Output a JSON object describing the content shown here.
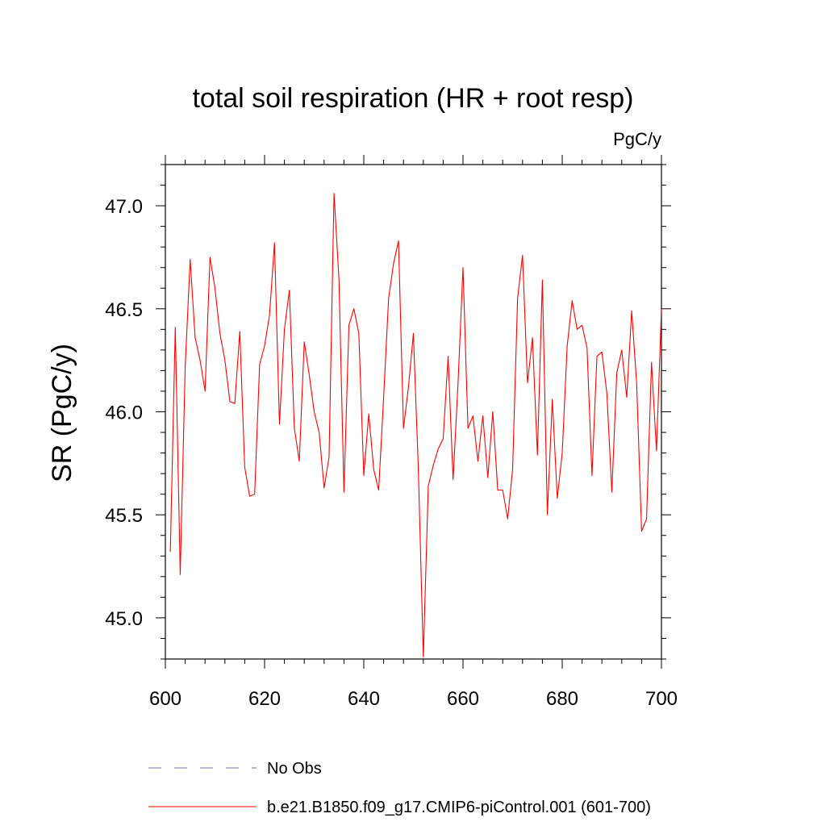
{
  "chart_data": {
    "type": "line",
    "title": "total soil respiration (HR + root resp)",
    "units": "PgC/y",
    "xlabel": "",
    "ylabel": "SR  (PgC/y)",
    "xlim": [
      600,
      700
    ],
    "ylim": [
      44.8,
      47.2
    ],
    "x_ticks": [
      600,
      620,
      640,
      660,
      680,
      700
    ],
    "x_tick_labels": [
      "600",
      "620",
      "640",
      "660",
      "680",
      "700"
    ],
    "y_ticks": [
      45.0,
      45.5,
      46.0,
      46.5,
      47.0
    ],
    "y_tick_labels": [
      "45.0",
      "45.5",
      "46.0",
      "46.5",
      "47.0"
    ],
    "grid": false,
    "series": [
      {
        "name": "b.e21.B1850.f09_g17.CMIP6-piControl.001 (601-700)",
        "color": "#ff0000",
        "style": "solid",
        "x_start": 601,
        "x_step": 1,
        "values": [
          45.32,
          46.41,
          45.21,
          46.22,
          46.74,
          46.36,
          46.25,
          46.1,
          46.75,
          46.6,
          46.38,
          46.25,
          46.05,
          46.04,
          46.39,
          45.73,
          45.59,
          45.6,
          46.23,
          46.32,
          46.47,
          46.82,
          45.94,
          46.4,
          46.59,
          45.92,
          45.76,
          46.34,
          46.18,
          46.0,
          45.9,
          45.63,
          45.78,
          47.06,
          46.64,
          45.61,
          46.42,
          46.5,
          46.38,
          45.69,
          45.99,
          45.72,
          45.62,
          46.07,
          46.55,
          46.72,
          46.83,
          45.92,
          46.12,
          46.38,
          45.72,
          44.81,
          45.64,
          45.74,
          45.82,
          45.87,
          46.27,
          45.67,
          46.14,
          46.7,
          45.92,
          45.98,
          45.76,
          45.98,
          45.68,
          46.0,
          45.62,
          45.62,
          45.48,
          45.72,
          46.55,
          46.76,
          46.14,
          46.36,
          45.79,
          46.64,
          45.5,
          46.06,
          45.58,
          45.8,
          46.32,
          46.54,
          46.4,
          46.42,
          46.31,
          45.69,
          46.27,
          46.29,
          46.09,
          45.61,
          46.19,
          46.3,
          46.07,
          46.49,
          46.14,
          45.42,
          45.48,
          46.24,
          45.81,
          46.5
        ]
      },
      {
        "name": "No Obs",
        "color": "#6f6fd0",
        "style": "dashed",
        "values": []
      }
    ],
    "legend_position": "bottom-left"
  }
}
